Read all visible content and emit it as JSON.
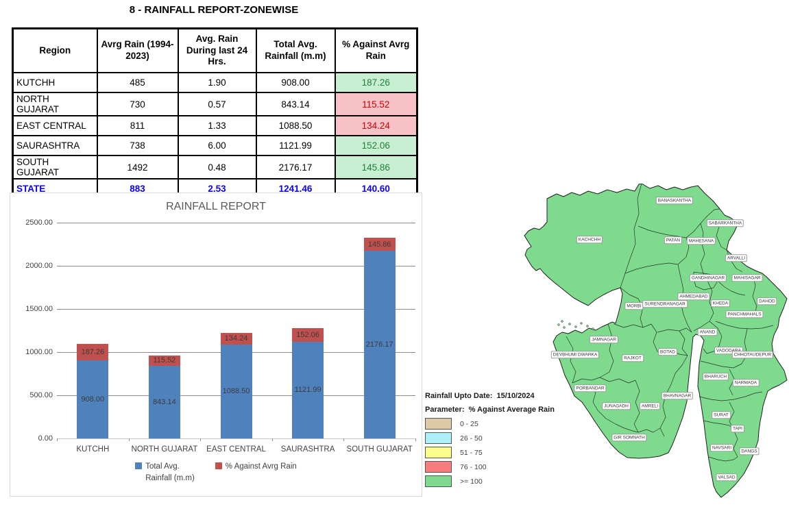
{
  "report": {
    "title": "8 - RAINFALL REPORT-ZONEWISE"
  },
  "table": {
    "headers": [
      "Region",
      "Avrg Rain (1994-2023)",
      "Avg. Rain During last 24 Hrs.",
      "Total Avg. Rainfall (m.m)",
      "% Against Avrg Rain"
    ],
    "rows": [
      {
        "region": "KUTCHH",
        "avg_rain": "485",
        "last_24": "1.90",
        "total": "908.00",
        "pct": "187.26",
        "pct_status": "good"
      },
      {
        "region": "NORTH GUJARAT",
        "avg_rain": "730",
        "last_24": "0.57",
        "total": "843.14",
        "pct": "115.52",
        "pct_status": "bad"
      },
      {
        "region": "EAST CENTRAL",
        "avg_rain": "811",
        "last_24": "1.33",
        "total": "1088.50",
        "pct": "134.24",
        "pct_status": "bad"
      },
      {
        "region": "SAURASHTRA",
        "avg_rain": "738",
        "last_24": "6.00",
        "total": "1121.99",
        "pct": "152.06",
        "pct_status": "good"
      },
      {
        "region": "SOUTH GUJARAT",
        "avg_rain": "1492",
        "last_24": "0.48",
        "total": "2176.17",
        "pct": "145.86",
        "pct_status": "good"
      }
    ],
    "total_row": {
      "region": "STATE",
      "avg_rain": "883",
      "last_24": "2.53",
      "total": "1241.46",
      "pct": "140.60"
    },
    "colors": {
      "good_bg": "#c9efd2",
      "good_text": "#1e8138",
      "bad_bg": "#f9c2c7",
      "bad_text": "#cc0000",
      "total_text": "#0b00f0"
    }
  },
  "chart_data": {
    "type": "bar",
    "stacked": true,
    "title": "RAINFALL REPORT",
    "categories": [
      "KUTCHH",
      "NORTH GUJARAT",
      "EAST CENTRAL",
      "SAURASHTRA",
      "SOUTH GUJARAT"
    ],
    "series": [
      {
        "name": "Total Avg. Rainfall (m.m)",
        "color": "#4f81bd",
        "values": [
          908.0,
          843.14,
          1088.5,
          1121.99,
          2176.17
        ],
        "labels": [
          "908.00",
          "843.14",
          "1088.50",
          "1121.99",
          "2176.17"
        ]
      },
      {
        "name": "% Against Avrg Rain",
        "color": "#c0504d",
        "values": [
          187.26,
          115.52,
          134.24,
          152.06,
          145.86
        ],
        "labels": [
          "187.26",
          "115.52",
          "134.24",
          "152.06",
          "145.86"
        ]
      }
    ],
    "ylim": [
      0,
      2500
    ],
    "yticks": [
      "2500.00",
      "2000.00",
      "1500.00",
      "1000.00",
      "500.00",
      "0.00"
    ],
    "grid": true,
    "legend_position": "bottom",
    "legend_labels": [
      [
        "Total Avg.",
        "Rainfall (m.m)"
      ],
      [
        "% Against Avrg Rain"
      ]
    ]
  },
  "map": {
    "header": {
      "line1_label": "Rainfall Upto Date:",
      "line1_value": "15/10/2024",
      "line2_label": "Parameter:",
      "line2_value": "% Against Average Rain"
    },
    "legend": [
      {
        "range": "0 - 25",
        "color": "#dec9a9"
      },
      {
        "range": "26 - 50",
        "color": "#aeeef8"
      },
      {
        "range": "51 - 75",
        "color": "#fdfd8d"
      },
      {
        "range": "76 - 100",
        "color": "#f97d7d"
      },
      {
        "range": ">= 100",
        "color": "#7edb8e"
      }
    ],
    "fill_color": "#7edb8e",
    "districts": [
      "KACHCHH",
      "BANASKANTHA",
      "SABARKANTHA",
      "PATAN",
      "MAHESANA",
      "ARVALLI",
      "GANDHINAGAR",
      "MAHISAGAR",
      "AHMEDABAD",
      "KHEDA",
      "DAHOD",
      "MORBI",
      "SURENDRANAGAR",
      "PANCHMAHALS",
      "ANAND",
      "JAMNAGAR",
      "VADODARA",
      "CHHOTAUDEPUR",
      "DEVBHUMI DWARKA",
      "RAJKOT",
      "BOTAD",
      "BHARUCH",
      "NARMADA",
      "PORBANDAR",
      "BHAVNAGAR",
      "JUNAGADH",
      "AMRELI",
      "SURAT",
      "TAPI",
      "GIR SOMNATH",
      "NAVSARI",
      "DANGS",
      "VALSAD"
    ]
  }
}
